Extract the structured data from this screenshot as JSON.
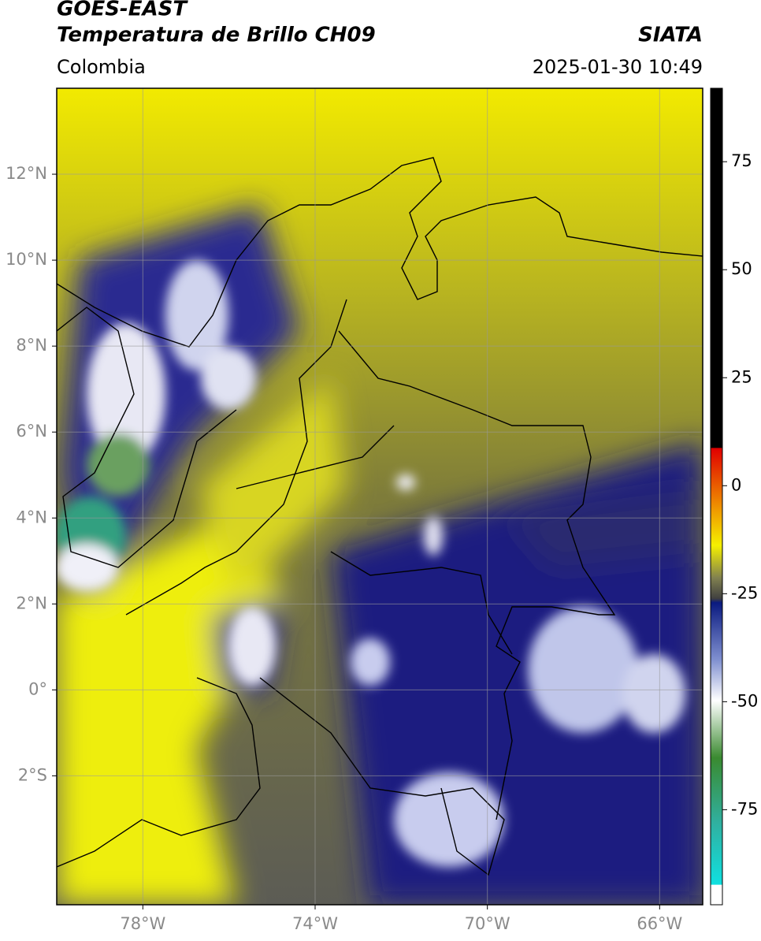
{
  "header": {
    "title": "GOES-EAST",
    "subtitle": "Temperatura de Brillo CH09",
    "source": "SIATA",
    "region": "Colombia",
    "datetime": "2025-01-30 10:49"
  },
  "map": {
    "xlim": [
      -80,
      -65
    ],
    "ylim": [
      -5,
      14
    ],
    "xticks": [
      {
        "value": -78,
        "label": "78°W"
      },
      {
        "value": -74,
        "label": "74°W"
      },
      {
        "value": -70,
        "label": "70°W"
      },
      {
        "value": -66,
        "label": "66°W"
      }
    ],
    "yticks": [
      {
        "value": 12,
        "label": "12°N"
      },
      {
        "value": 10,
        "label": "10°N"
      },
      {
        "value": 8,
        "label": "8°N"
      },
      {
        "value": 6,
        "label": "6°N"
      },
      {
        "value": 4,
        "label": "4°N"
      },
      {
        "value": 2,
        "label": "2°N"
      },
      {
        "value": 0,
        "label": "0°"
      },
      {
        "value": -2,
        "label": "2°S"
      }
    ],
    "grid": true
  },
  "colorbar": {
    "lim": [
      -97,
      92
    ],
    "ticks": [
      75,
      50,
      25,
      0,
      -25,
      -50,
      -75
    ]
  }
}
